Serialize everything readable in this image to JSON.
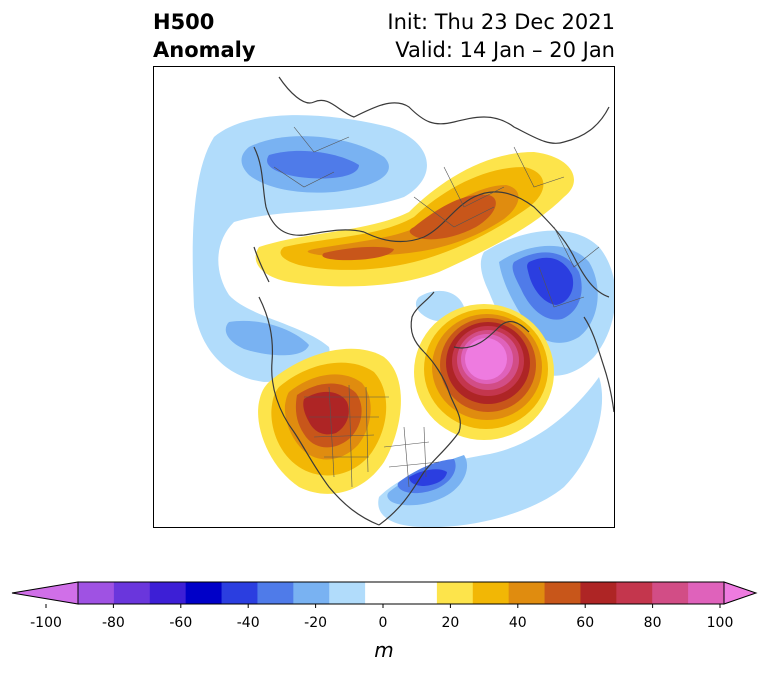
{
  "header": {
    "variable": "H500",
    "field": "Anomaly",
    "init": "Init: Thu 23 Dec 2021",
    "valid": "Valid: 14 Jan – 20 Jan"
  },
  "map": {
    "features": [
      {
        "name": "north-pacific-negative-anomaly",
        "sign": "negative"
      },
      {
        "name": "arctic-siberia-positive-ridge",
        "sign": "positive"
      },
      {
        "name": "europe-negative-trough",
        "sign": "negative"
      },
      {
        "name": "western-north-america-positive-ridge",
        "sign": "positive"
      },
      {
        "name": "north-atlantic-strong-positive-ridge",
        "sign": "positive"
      },
      {
        "name": "eastern-us-negative-trough",
        "sign": "negative"
      }
    ]
  },
  "colorbar": {
    "unit": "m",
    "tick_labels": [
      "-100",
      "-80",
      "-60",
      "-40",
      "-20",
      "0",
      "20",
      "40",
      "60",
      "80",
      "100"
    ],
    "colors": [
      "#d06fe8",
      "#9f52e3",
      "#6a36dc",
      "#3d1fd6",
      "#0000c8",
      "#2b3ee0",
      "#4f7be9",
      "#79b2f2",
      "#b1dcfb",
      "#ffffff",
      "#ffffff",
      "#fde44b",
      "#f2b705",
      "#e08c0f",
      "#c8561a",
      "#ae2525",
      "#c4364d",
      "#d24d86",
      "#df62bb",
      "#ee7be0"
    ]
  }
}
